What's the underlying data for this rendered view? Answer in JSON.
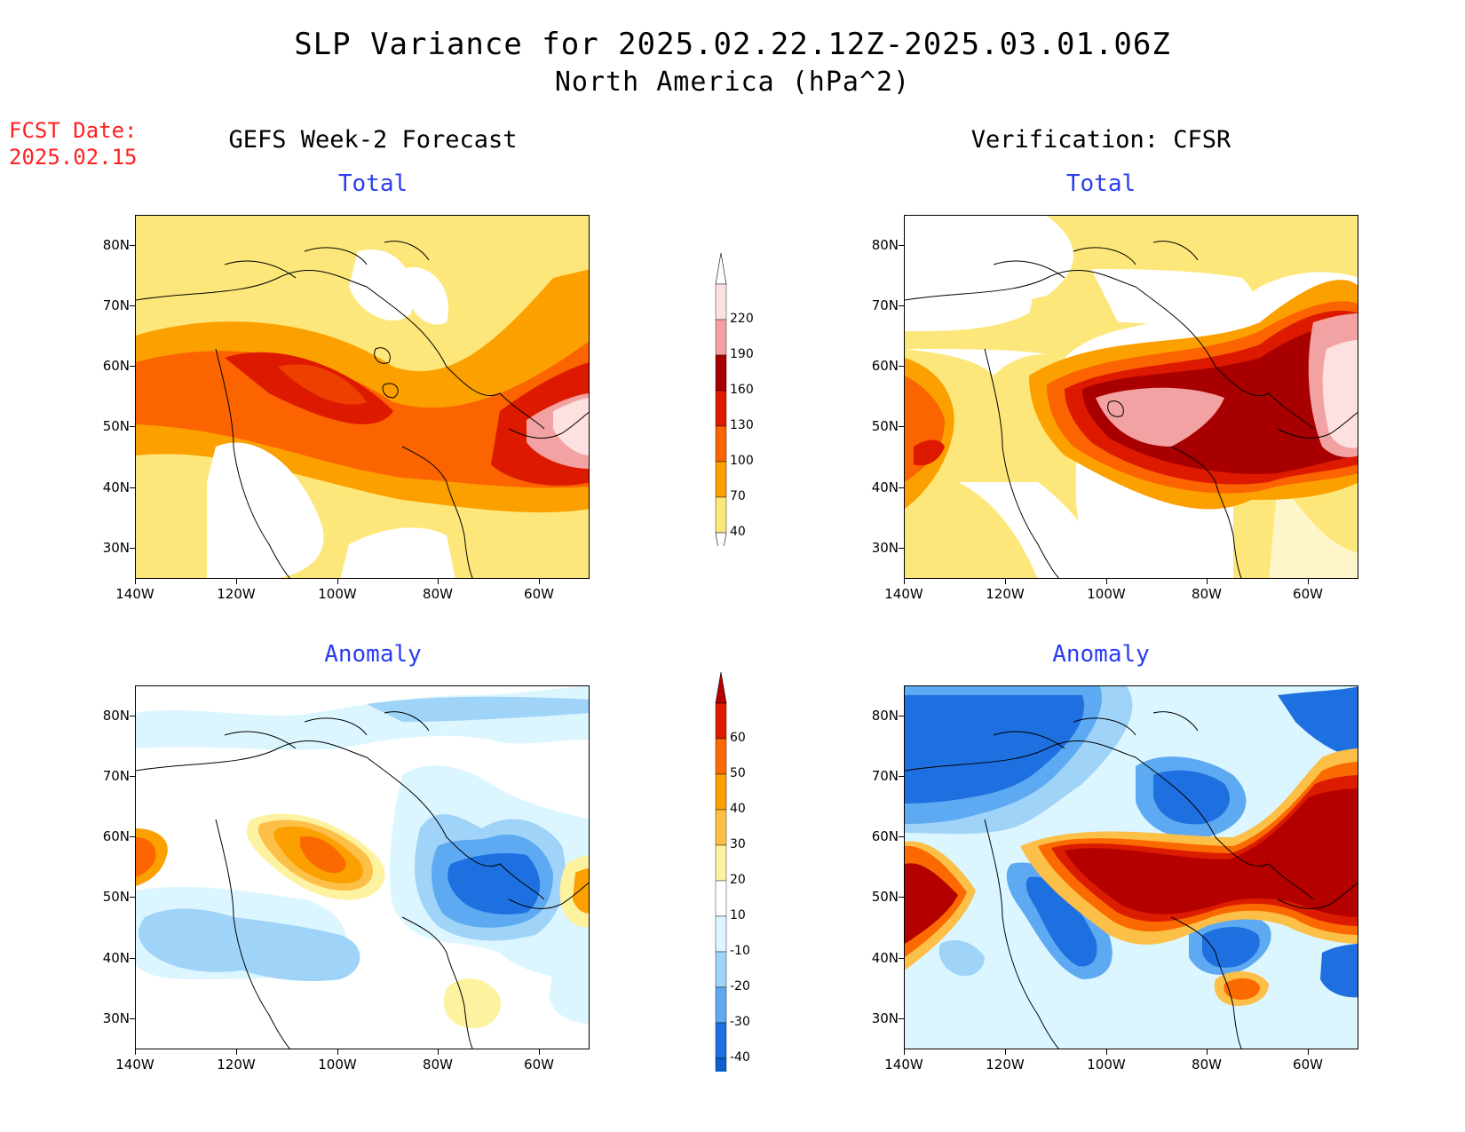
{
  "header": {
    "title": "SLP Variance for 2025.02.22.12Z-2025.03.01.06Z",
    "subtitle": "North America (hPa^2)",
    "fcst_label": "FCST Date:",
    "fcst_date": "2025.02.15"
  },
  "columns": {
    "left": "GEFS Week-2 Forecast",
    "right": "Verification: CFSR"
  },
  "panels": {
    "top_left": "Total",
    "top_right": "Total",
    "bottom_left": "Anomaly",
    "bottom_right": "Anomaly"
  },
  "axes": {
    "lat_labels": [
      "80N",
      "70N",
      "60N",
      "50N",
      "40N",
      "30N"
    ],
    "lon_labels": [
      "140W",
      "120W",
      "100W",
      "80W",
      "60W"
    ]
  },
  "colorbars": {
    "total": {
      "levels": [
        "220",
        "190",
        "160",
        "130",
        "100",
        "70",
        "40"
      ],
      "colors": [
        "#fde0e0",
        "#f2a2a2",
        "#a80000",
        "#dd1a00",
        "#fb6400",
        "#fca000",
        "#fde77a"
      ]
    },
    "anomaly": {
      "levels": [
        "60",
        "50",
        "40",
        "30",
        "20",
        "10",
        "-10",
        "-20",
        "-30",
        "-40"
      ],
      "colors": [
        "#b50000",
        "#dc1c00",
        "#fb6a00",
        "#fca000",
        "#fcbf48",
        "#fdf2a0",
        "#ffffff",
        "#dcf6ff",
        "#9fd3f8",
        "#5da9f2",
        "#1e6fe0",
        "#0f5ed0"
      ]
    }
  }
}
